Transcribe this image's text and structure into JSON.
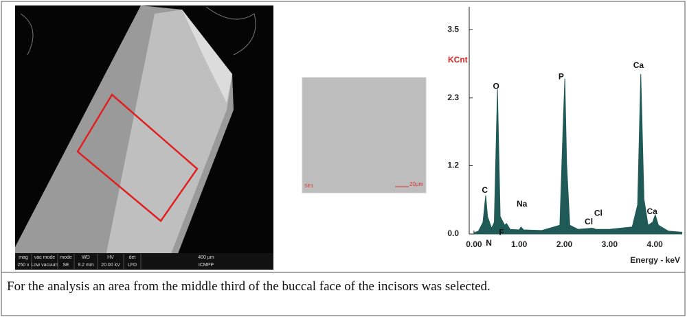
{
  "sem_image": {
    "info_headers": [
      "mag",
      "vac mode",
      "mode",
      "WD",
      "HV",
      "det",
      "400 µm"
    ],
    "info_values": [
      "250 x",
      "Low vacuum",
      "SE",
      "9.2 mm",
      "20.00 kV",
      "LFD",
      "ICMPP"
    ]
  },
  "detail_image": {
    "left_label": "SE1",
    "scale_label": "20µm"
  },
  "chart_data": {
    "type": "area",
    "ylabel": "KCnt",
    "xlabel": "Energy - keV",
    "color": "#1f5a57",
    "x": [
      0.0,
      0.1,
      0.2,
      0.26,
      0.3,
      0.39,
      0.45,
      0.52,
      0.58,
      0.68,
      0.72,
      0.8,
      1.0,
      1.04,
      1.1,
      1.5,
      1.9,
      1.97,
      2.01,
      2.05,
      2.12,
      2.3,
      2.62,
      2.7,
      3.0,
      3.5,
      3.62,
      3.69,
      3.76,
      3.85,
      3.95,
      4.01,
      4.08,
      4.3,
      4.6
    ],
    "values": [
      0.02,
      0.05,
      0.2,
      0.66,
      0.3,
      0.1,
      0.2,
      2.48,
      0.3,
      0.15,
      0.18,
      0.08,
      0.07,
      0.12,
      0.07,
      0.06,
      0.15,
      1.8,
      2.66,
      1.2,
      0.15,
      0.08,
      0.1,
      0.08,
      0.08,
      0.12,
      0.5,
      2.74,
      0.6,
      0.15,
      0.2,
      0.33,
      0.15,
      0.05,
      0.03
    ],
    "xlim": [
      -0.15,
      4.56
    ],
    "ylim": [
      0,
      3.89
    ],
    "xticks": [
      {
        "value": 0,
        "label": "0.00"
      },
      {
        "value": 1,
        "label": "1.00"
      },
      {
        "value": 2,
        "label": "2.00"
      },
      {
        "value": 3,
        "label": "3.00"
      },
      {
        "value": 4,
        "label": "4.00"
      }
    ],
    "yticks": [
      {
        "value": 0,
        "label": "0.0"
      },
      {
        "value": 1.17,
        "label": "1.2"
      },
      {
        "value": 2.33,
        "label": "2.3"
      },
      3.5
    ],
    "annotations": [
      {
        "text": "C",
        "x": 0.24,
        "y": 0.74
      },
      {
        "text": "N",
        "x": 0.33,
        "y": -0.16
      },
      {
        "text": "O",
        "x": 0.49,
        "y": 2.52
      },
      {
        "text": "F",
        "x": 0.61,
        "y": 0.02
      },
      {
        "text": "Na",
        "x": 1.06,
        "y": 0.51
      },
      {
        "text": "P",
        "x": 1.93,
        "y": 2.69
      },
      {
        "text": "Cl",
        "x": 2.54,
        "y": 0.2
      },
      {
        "text": "Cl",
        "x": 2.75,
        "y": 0.35
      },
      {
        "text": "Ca",
        "x": 3.64,
        "y": 2.88
      },
      {
        "text": "Ca",
        "x": 3.94,
        "y": 0.38
      }
    ]
  },
  "caption": "For the analysis an area from the middle third of the buccal face of the incisors was selected."
}
